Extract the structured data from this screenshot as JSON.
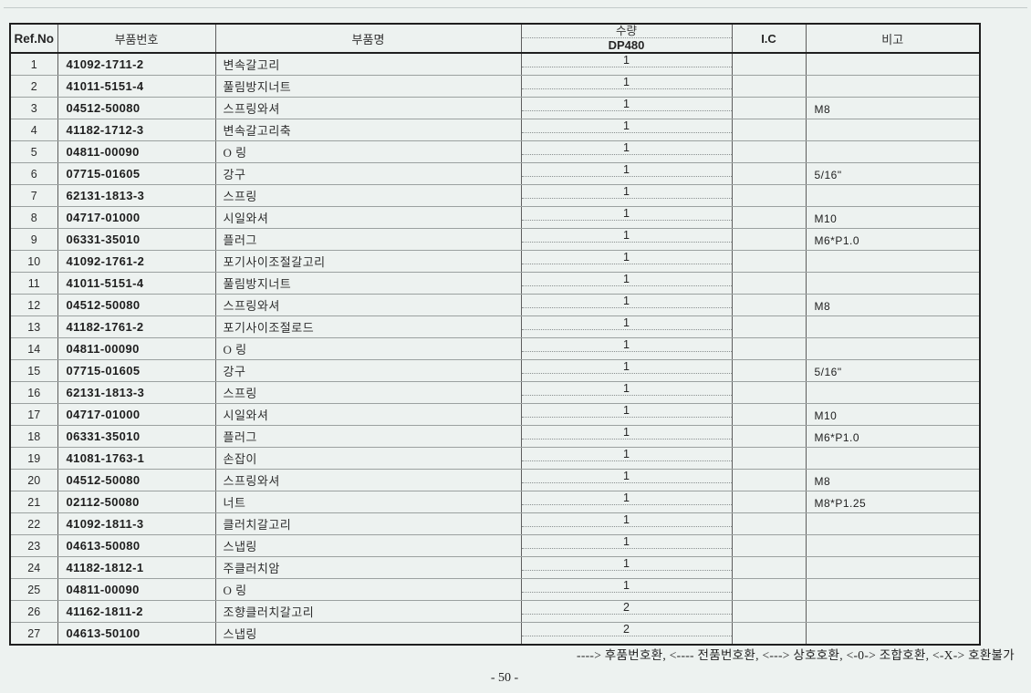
{
  "page": {
    "legend": "----> 후품번호환, <---- 전품번호환, <---> 상호호환, <-0-> 조합호환, <-X-> 호환불가",
    "number": "- 50 -"
  },
  "table": {
    "headers": {
      "ref_no": "Ref.No",
      "part_number": "부품번호",
      "part_name": "부품명",
      "qty": "수량",
      "qty_model": "DP480",
      "ic": "I.C",
      "remarks": "비고"
    },
    "rows": [
      {
        "ref": "1",
        "part_number": "41092-1711-2",
        "part_name": "변속갈고리",
        "qty": "1",
        "ic": "",
        "remark": ""
      },
      {
        "ref": "2",
        "part_number": "41011-5151-4",
        "part_name": "풀림방지너트",
        "qty": "1",
        "ic": "",
        "remark": ""
      },
      {
        "ref": "3",
        "part_number": "04512-50080",
        "part_name": "스프링와셔",
        "qty": "1",
        "ic": "",
        "remark": "M8"
      },
      {
        "ref": "4",
        "part_number": "41182-1712-3",
        "part_name": "변속갈고리축",
        "qty": "1",
        "ic": "",
        "remark": ""
      },
      {
        "ref": "5",
        "part_number": "04811-00090",
        "part_name": "O 링",
        "qty": "1",
        "ic": "",
        "remark": ""
      },
      {
        "ref": "6",
        "part_number": "07715-01605",
        "part_name": "강구",
        "qty": "1",
        "ic": "",
        "remark": "5/16\""
      },
      {
        "ref": "7",
        "part_number": "62131-1813-3",
        "part_name": "스프링",
        "qty": "1",
        "ic": "",
        "remark": ""
      },
      {
        "ref": "8",
        "part_number": "04717-01000",
        "part_name": "시일와셔",
        "qty": "1",
        "ic": "",
        "remark": "M10"
      },
      {
        "ref": "9",
        "part_number": "06331-35010",
        "part_name": "플러그",
        "qty": "1",
        "ic": "",
        "remark": "M6*P1.0"
      },
      {
        "ref": "10",
        "part_number": "41092-1761-2",
        "part_name": "포기사이조절갈고리",
        "qty": "1",
        "ic": "",
        "remark": ""
      },
      {
        "ref": "11",
        "part_number": "41011-5151-4",
        "part_name": "풀림방지너트",
        "qty": "1",
        "ic": "",
        "remark": ""
      },
      {
        "ref": "12",
        "part_number": "04512-50080",
        "part_name": "스프링와셔",
        "qty": "1",
        "ic": "",
        "remark": "M8"
      },
      {
        "ref": "13",
        "part_number": "41182-1761-2",
        "part_name": "포기사이조절로드",
        "qty": "1",
        "ic": "",
        "remark": ""
      },
      {
        "ref": "14",
        "part_number": "04811-00090",
        "part_name": "O 링",
        "qty": "1",
        "ic": "",
        "remark": ""
      },
      {
        "ref": "15",
        "part_number": "07715-01605",
        "part_name": "강구",
        "qty": "1",
        "ic": "",
        "remark": "5/16\""
      },
      {
        "ref": "16",
        "part_number": "62131-1813-3",
        "part_name": "스프링",
        "qty": "1",
        "ic": "",
        "remark": ""
      },
      {
        "ref": "17",
        "part_number": "04717-01000",
        "part_name": "시일와셔",
        "qty": "1",
        "ic": "",
        "remark": "M10"
      },
      {
        "ref": "18",
        "part_number": "06331-35010",
        "part_name": "플러그",
        "qty": "1",
        "ic": "",
        "remark": "M6*P1.0"
      },
      {
        "ref": "19",
        "part_number": "41081-1763-1",
        "part_name": "손잡이",
        "qty": "1",
        "ic": "",
        "remark": ""
      },
      {
        "ref": "20",
        "part_number": "04512-50080",
        "part_name": "스프링와셔",
        "qty": "1",
        "ic": "",
        "remark": "M8"
      },
      {
        "ref": "21",
        "part_number": "02112-50080",
        "part_name": "너트",
        "qty": "1",
        "ic": "",
        "remark": "M8*P1.25"
      },
      {
        "ref": "22",
        "part_number": "41092-1811-3",
        "part_name": "클러치갈고리",
        "qty": "1",
        "ic": "",
        "remark": ""
      },
      {
        "ref": "23",
        "part_number": "04613-50080",
        "part_name": "스냅링",
        "qty": "1",
        "ic": "",
        "remark": ""
      },
      {
        "ref": "24",
        "part_number": "41182-1812-1",
        "part_name": "주클러치암",
        "qty": "1",
        "ic": "",
        "remark": ""
      },
      {
        "ref": "25",
        "part_number": "04811-00090",
        "part_name": "O 링",
        "qty": "1",
        "ic": "",
        "remark": ""
      },
      {
        "ref": "26",
        "part_number": "41162-1811-2",
        "part_name": "조향클러치갈고리",
        "qty": "2",
        "ic": "",
        "remark": ""
      },
      {
        "ref": "27",
        "part_number": "04613-50100",
        "part_name": "스냅링",
        "qty": "2",
        "ic": "",
        "remark": ""
      }
    ]
  }
}
